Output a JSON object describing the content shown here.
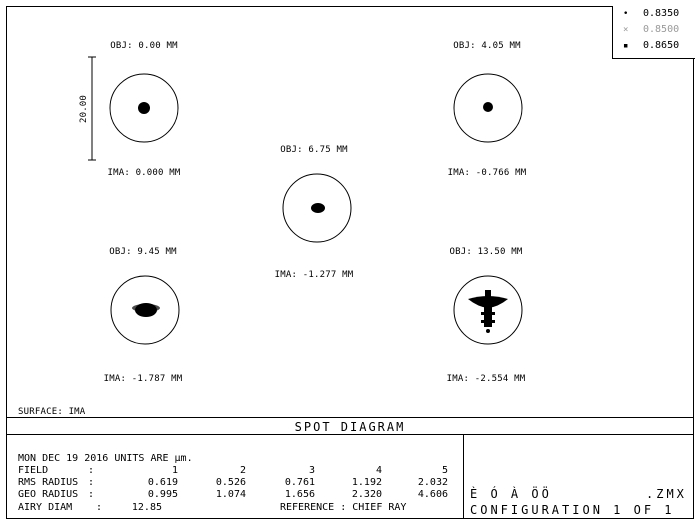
{
  "legend": [
    {
      "wavelength": "0.8350",
      "color": "#000000",
      "marker": "dot-icon"
    },
    {
      "wavelength": "0.8500",
      "color": "#9a9a9a",
      "marker": "x-icon"
    },
    {
      "wavelength": "0.8650",
      "color": "#000000",
      "marker": "square-icon"
    }
  ],
  "scale_bar_label": "20.00",
  "spots": [
    {
      "obj": "OBJ: 0.00 MM",
      "ima": "IMA: 0.000 MM"
    },
    {
      "obj": "OBJ: 4.05 MM",
      "ima": "IMA: -0.766 MM"
    },
    {
      "obj": "OBJ: 6.75 MM",
      "ima": "IMA: -1.277 MM"
    },
    {
      "obj": "OBJ: 9.45 MM",
      "ima": "IMA: -1.787 MM"
    },
    {
      "obj": "OBJ: 13.50 MM",
      "ima": "IMA: -2.554 MM"
    }
  ],
  "surface_label": "SURFACE: IMA",
  "title": "SPOT DIAGRAM",
  "info": {
    "date_line": "MON DEC 19 2016  UNITS ARE µm.",
    "field_label": "FIELD",
    "rms_label": "RMS RADIUS",
    "geo_label": "GEO RADIUS",
    "airy_label": "AIRY DIAM",
    "colon": ":",
    "fields": [
      "1",
      "2",
      "3",
      "4",
      "5"
    ],
    "rms": [
      "0.619",
      "0.526",
      "0.761",
      "1.192",
      "2.032"
    ],
    "geo": [
      "0.995",
      "1.074",
      "1.656",
      "2.320",
      "4.606"
    ],
    "airy": "12.85",
    "reference": "REFERENCE  : CHIEF RAY"
  },
  "file_box": {
    "name": "È Ó  À  ÖÖ",
    "ext": ".ZMX",
    "config": "CONFIGURATION 1 OF 1"
  }
}
